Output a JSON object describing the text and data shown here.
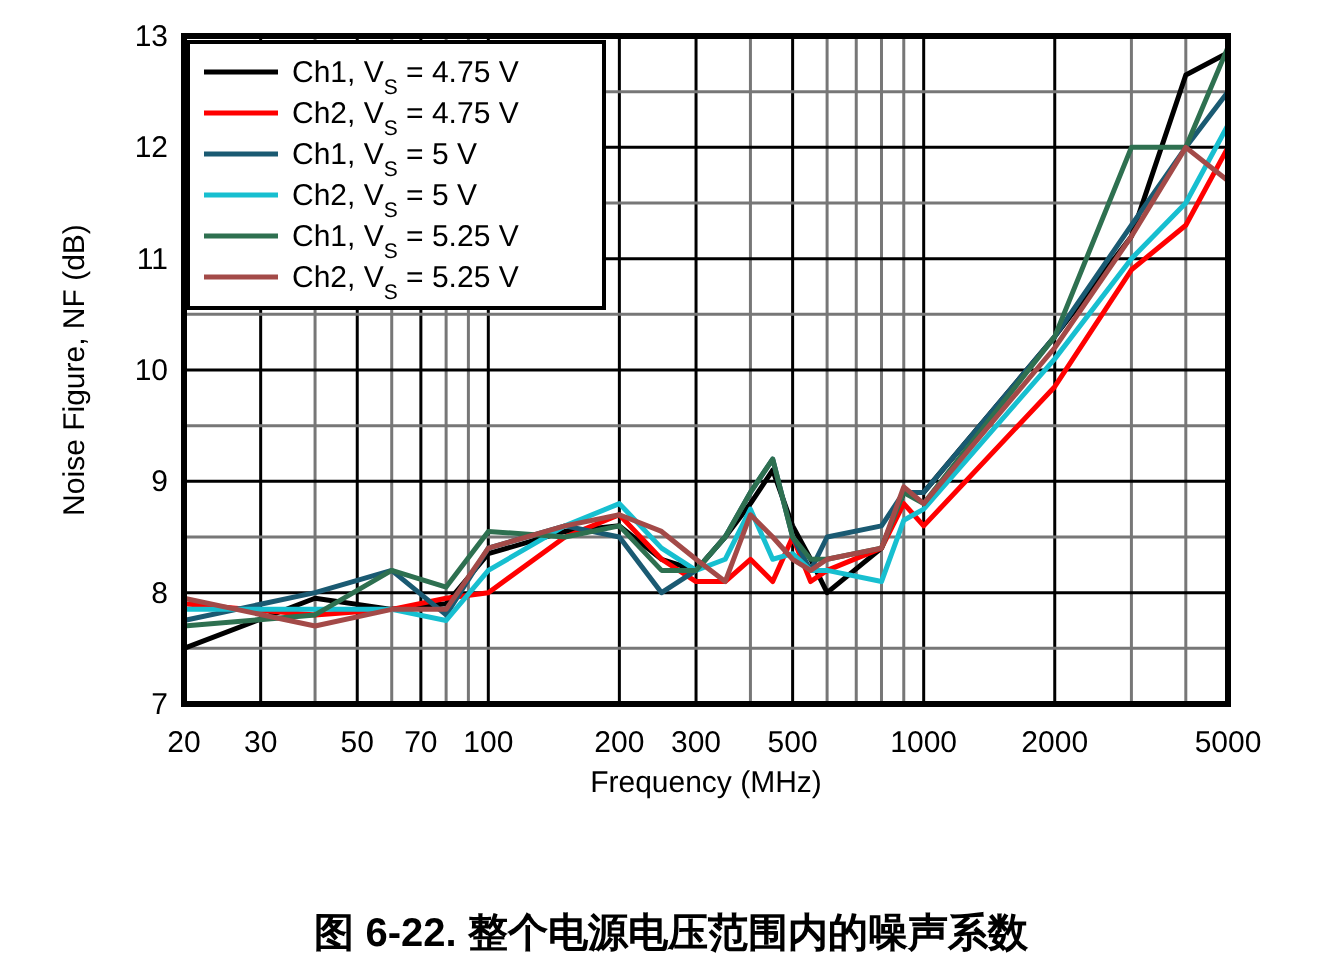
{
  "chart_data": {
    "type": "line",
    "xlabel": "Frequency (MHz)",
    "ylabel": "Noise Figure, NF (dB)",
    "annotations": [
      "图 6-22. 整个电源电压范围内的噪声系数"
    ],
    "log": "x",
    "xlim": [
      20,
      5000
    ],
    "ylim": [
      7,
      13
    ],
    "xticks": [
      20,
      30,
      {
        "value": 40,
        "label": null
      },
      50,
      {
        "value": 60,
        "label": null
      },
      70,
      {
        "value": 80,
        "label": null
      },
      {
        "value": 90,
        "label": null
      },
      100,
      200,
      300,
      {
        "value": 400,
        "label": null
      },
      500,
      {
        "value": 600,
        "label": null
      },
      {
        "value": 700,
        "label": null
      },
      {
        "value": 800,
        "label": null
      },
      {
        "value": 900,
        "label": null
      },
      1000,
      2000,
      {
        "value": 3000,
        "label": null
      },
      {
        "value": 4000,
        "label": null
      },
      5000
    ],
    "yticks": [
      7,
      {
        "value": 7.5,
        "label": null
      },
      8,
      {
        "value": 8.5,
        "label": null
      },
      9,
      {
        "value": 9.5,
        "label": null
      },
      10,
      {
        "value": 10.5,
        "label": null
      },
      11,
      {
        "value": 11.5,
        "label": null
      },
      12,
      {
        "value": 12.5,
        "label": null
      },
      13
    ],
    "grid": true,
    "legend": "top left",
    "marker": "none",
    "line_style": "solid",
    "x": [
      20,
      40,
      60,
      80,
      100,
      150,
      200,
      250,
      300,
      350,
      400,
      450,
      500,
      550,
      600,
      800,
      900,
      1000,
      2000,
      3000,
      4000,
      5000
    ],
    "series": [
      {
        "name": "Ch1, V$_{S}$ = 4.75 V",
        "color": "#000000",
        "values": [
          7.5,
          7.95,
          7.85,
          7.9,
          8.35,
          8.55,
          8.6,
          8.3,
          8.2,
          8.5,
          8.8,
          9.1,
          8.6,
          8.3,
          8.0,
          8.4,
          8.9,
          8.9,
          10.3,
          11.2,
          12.65,
          12.85
        ]
      },
      {
        "name": "Ch2, V$_{S}$ = 4.75 V",
        "color": "#ff0000",
        "values": [
          7.9,
          7.8,
          7.85,
          7.95,
          8.0,
          8.5,
          8.7,
          8.3,
          8.1,
          8.1,
          8.3,
          8.1,
          8.5,
          8.1,
          8.2,
          8.4,
          8.8,
          8.6,
          9.85,
          10.9,
          11.3,
          12.0
        ]
      },
      {
        "name": "Ch1, V$_{S}$ = 5 V",
        "color": "#1a5a72",
        "values": [
          7.75,
          8.0,
          8.2,
          7.8,
          8.4,
          8.6,
          8.5,
          8.0,
          8.2,
          8.5,
          8.9,
          9.2,
          8.5,
          8.2,
          8.5,
          8.6,
          8.9,
          8.9,
          10.3,
          11.3,
          12.0,
          12.5
        ]
      },
      {
        "name": "Ch2, V$_{S}$ = 5 V",
        "color": "#17bfd0",
        "values": [
          7.85,
          7.85,
          7.85,
          7.75,
          8.2,
          8.6,
          8.8,
          8.4,
          8.2,
          8.3,
          8.75,
          8.3,
          8.35,
          8.2,
          8.2,
          8.1,
          8.65,
          8.75,
          10.1,
          11.0,
          11.5,
          12.2
        ]
      },
      {
        "name": "Ch1, V$_{S}$ = 5.25 V",
        "color": "#2e7050",
        "values": [
          7.7,
          7.8,
          8.2,
          8.05,
          8.55,
          8.5,
          8.6,
          8.2,
          8.2,
          8.5,
          8.9,
          9.2,
          8.5,
          8.3,
          8.3,
          8.4,
          8.9,
          8.8,
          10.3,
          12.0,
          12.0,
          12.9
        ]
      },
      {
        "name": "Ch2, V$_{S}$ = 5.25 V",
        "color": "#a34a48",
        "values": [
          7.95,
          7.7,
          7.85,
          7.85,
          8.4,
          8.6,
          8.7,
          8.55,
          8.3,
          8.1,
          8.7,
          8.5,
          8.3,
          8.2,
          8.3,
          8.4,
          8.95,
          8.8,
          10.2,
          11.2,
          12.0,
          11.7
        ]
      }
    ]
  }
}
